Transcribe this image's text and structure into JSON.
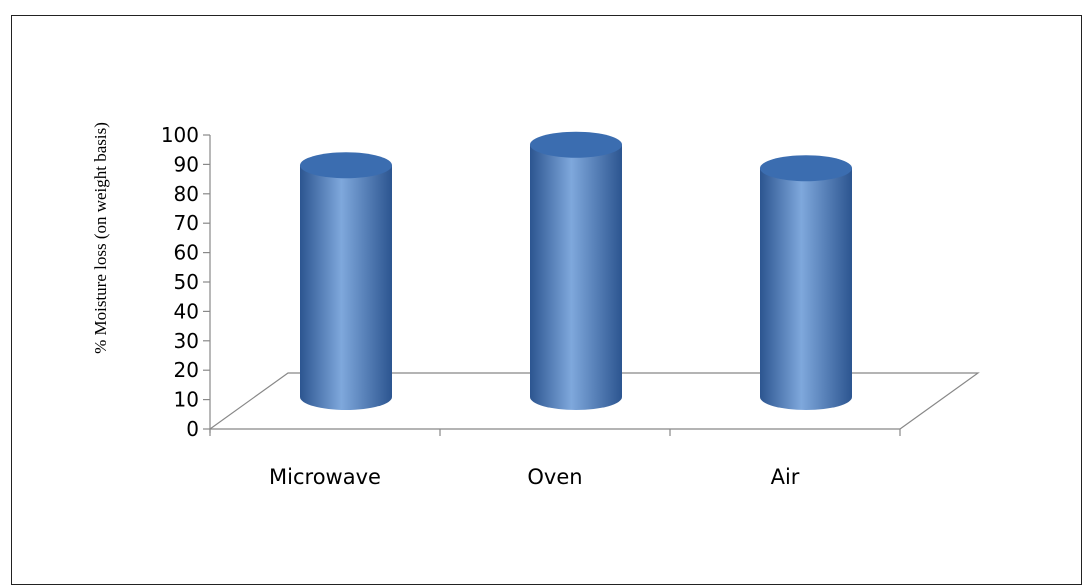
{
  "chart_data": {
    "type": "bar",
    "style": "3d-cylinder",
    "categories": [
      "Microwave",
      "Oven",
      "Air"
    ],
    "series": [
      {
        "values": [
          88,
          95,
          87
        ]
      }
    ],
    "title": "",
    "xlabel": "",
    "ylabel": "% Moisture loss (on weight basis)",
    "ylim": [
      0,
      100
    ],
    "yticks": [
      "0",
      "10",
      "20",
      "30",
      "40",
      "50",
      "60",
      "70",
      "80",
      "90",
      "100"
    ],
    "grid": false,
    "legend": "none",
    "colors": {
      "bar": "#4f81bd",
      "bar_light": "#7fa8dc",
      "bar_dark": "#2c5590",
      "top": "#3b6db0"
    }
  }
}
